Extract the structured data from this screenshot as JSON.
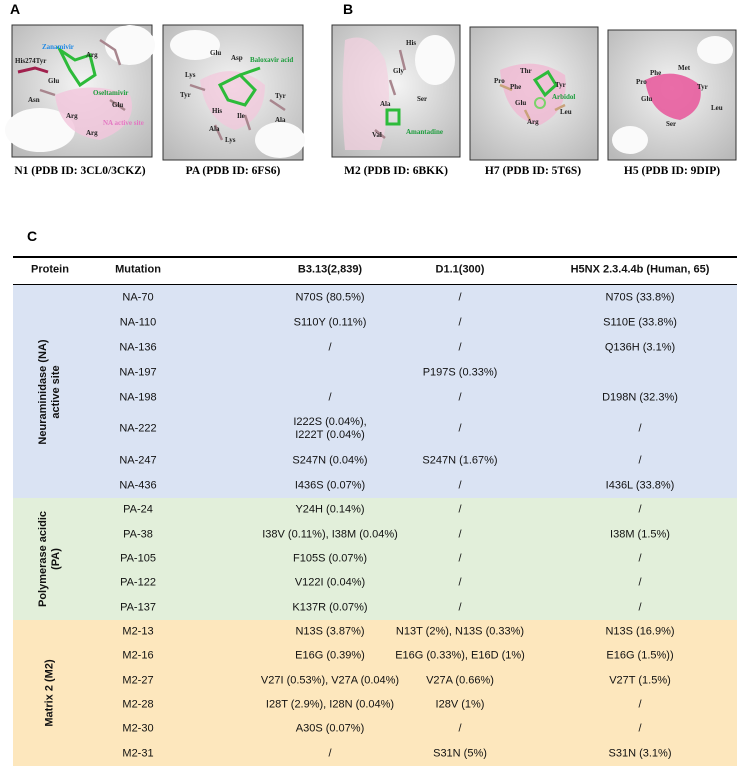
{
  "panel_a": {
    "label": "A",
    "structures": [
      {
        "caption": "N1 (PDB ID: 3CL0/3CKZ)",
        "labels": [
          {
            "text": "Zanamivir",
            "color": "#1e88e5"
          },
          {
            "text": "His274Tyr"
          },
          {
            "text": "Arg"
          },
          {
            "text": "Glu"
          },
          {
            "text": "Asn"
          },
          {
            "text": "Oseltamivir",
            "color": "#1a9c3a"
          },
          {
            "text": "Glu"
          },
          {
            "text": "Arg"
          },
          {
            "text": "Arg"
          },
          {
            "text": "NA active site",
            "color": "#e377c2"
          }
        ]
      },
      {
        "caption": "PA (PDB ID: 6FS6)",
        "labels": [
          {
            "text": "Glu"
          },
          {
            "text": "Asp"
          },
          {
            "text": "Baloxavir acid",
            "color": "#1a9c3a"
          },
          {
            "text": "Lys"
          },
          {
            "text": "Tyr"
          },
          {
            "text": "Tyr"
          },
          {
            "text": "His"
          },
          {
            "text": "Ile"
          },
          {
            "text": "Ala"
          },
          {
            "text": "Ala"
          },
          {
            "text": "Lys"
          }
        ]
      }
    ]
  },
  "panel_b": {
    "label": "B",
    "structures": [
      {
        "caption": "M2 (PDB ID: 6BKK)",
        "labels": [
          {
            "text": "His"
          },
          {
            "text": "Gly"
          },
          {
            "text": "Ser"
          },
          {
            "text": "Ala"
          },
          {
            "text": "Val"
          },
          {
            "text": "Amantadine",
            "color": "#1a9c3a"
          }
        ]
      },
      {
        "caption": "H7 (PDB ID: 5T6S)",
        "labels": [
          {
            "text": "Thr"
          },
          {
            "text": "Pro"
          },
          {
            "text": "Phe"
          },
          {
            "text": "Tyr"
          },
          {
            "text": "Arbidol",
            "color": "#1a9c3a"
          },
          {
            "text": "Glu"
          },
          {
            "text": "Leu"
          },
          {
            "text": "Arg"
          }
        ]
      },
      {
        "caption": "H5 (PDB ID: 9DIP)",
        "labels": [
          {
            "text": "Phe"
          },
          {
            "text": "Met"
          },
          {
            "text": "Pro"
          },
          {
            "text": "Tyr"
          },
          {
            "text": "Glu"
          },
          {
            "text": "Leu"
          },
          {
            "text": "Ser"
          }
        ]
      }
    ]
  },
  "panel_c": {
    "label": "C",
    "table": {
      "header": [
        "Protein",
        "Mutation",
        "B3.13(2,839)",
        "D1.1(300)",
        "H5NX 2.3.4.4b (Human, 65)"
      ],
      "groups": [
        {
          "name": [
            "Neuraminidase (NA)",
            "active site"
          ],
          "color": "#dae3f3",
          "rows": [
            [
              "NA-70",
              "N70S (80.5%)",
              "/",
              "N70S (33.8%)"
            ],
            [
              "NA-110",
              "S110Y (0.11%)",
              "/",
              "S110E (33.8%)"
            ],
            [
              "NA-136",
              "/",
              "/",
              "Q136H (3.1%)"
            ],
            [
              "NA-197",
              null,
              "P197S (0.33%)",
              null
            ],
            [
              "NA-198",
              "/",
              "/",
              "D198N (32.3%)"
            ],
            [
              "NA-222",
              [
                "I222S (0.04%),",
                "I222T (0.04%)"
              ],
              "/",
              "/"
            ],
            [
              "NA-247",
              "S247N (0.04%)",
              "S247N (1.67%)",
              "/"
            ],
            [
              "NA-436",
              "I436S (0.07%)",
              "/",
              "I436L (33.8%)"
            ]
          ]
        },
        {
          "name": [
            "Polymerase acidic",
            "(PA)"
          ],
          "color": "#e2efda",
          "rows": [
            [
              "PA-24",
              "Y24H (0.14%)",
              "/",
              "/"
            ],
            [
              "PA-38",
              "I38V (0.11%), I38M (0.04%)",
              "/",
              "I38M (1.5%)"
            ],
            [
              "PA-105",
              "F105S (0.07%)",
              "/",
              "/"
            ],
            [
              "PA-122",
              "V122I (0.04%)",
              "/",
              "/"
            ],
            [
              "PA-137",
              "K137R (0.07%)",
              "/",
              "/"
            ]
          ]
        },
        {
          "name": [
            "Matrix 2 (M2)"
          ],
          "color": "#fde7bd",
          "rows": [
            [
              "M2-13",
              "N13S (3.87%)",
              "N13T (2%), N13S (0.33%)",
              "N13S (16.9%)"
            ],
            [
              "M2-16",
              "E16G (0.39%)",
              "E16G (0.33%), E16D (1%)",
              "E16G (1.5%))"
            ],
            [
              "M2-27",
              "V27I (0.53%), V27A (0.04%)",
              "V27A (0.66%)",
              "V27T (1.5%)"
            ],
            [
              "M2-28",
              "I28T (2.9%), I28N (0.04%)",
              "I28V (1%)",
              "/"
            ],
            [
              "M2-30",
              "A30S (0.07%)",
              "/",
              "/"
            ],
            [
              "M2-31",
              "/",
              "S31N (5%)",
              "S31N (3.1%)"
            ]
          ]
        }
      ]
    }
  }
}
